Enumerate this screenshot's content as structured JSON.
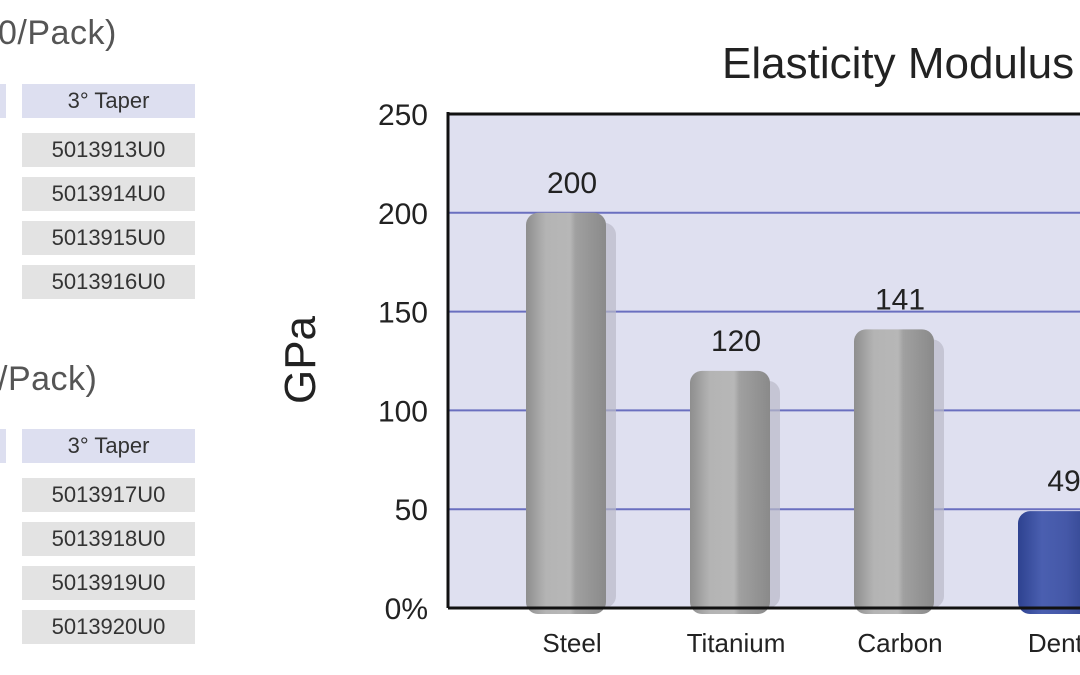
{
  "table1": {
    "heading": "0/Pack)",
    "header": "3° Taper",
    "rows": [
      "5013913U0",
      "5013914U0",
      "5013915U0",
      "5013916U0"
    ]
  },
  "table2": {
    "heading": "/Pack)",
    "header": "3° Taper",
    "rows": [
      "5013917U0",
      "5013918U0",
      "5013919U0",
      "5013920U0"
    ]
  },
  "chart_data": {
    "type": "bar",
    "title": "Elasticity Modulus",
    "ylabel": "GPa",
    "xlabel": "",
    "categories": [
      "Steel",
      "Titanium",
      "Carbon",
      "DentP"
    ],
    "values": [
      200,
      120,
      141,
      49
    ],
    "data_labels": [
      "200",
      "120",
      "141",
      "49"
    ],
    "ylim": [
      0,
      250
    ],
    "yticks": [
      "0%",
      "50",
      "100",
      "150",
      "200",
      "250"
    ],
    "grid": true,
    "colors": {
      "bar": "#a9a9a9",
      "highlight": "#3f55a3",
      "plot_bg": "#dfe0f0",
      "grid": "#6a6fbf"
    }
  }
}
